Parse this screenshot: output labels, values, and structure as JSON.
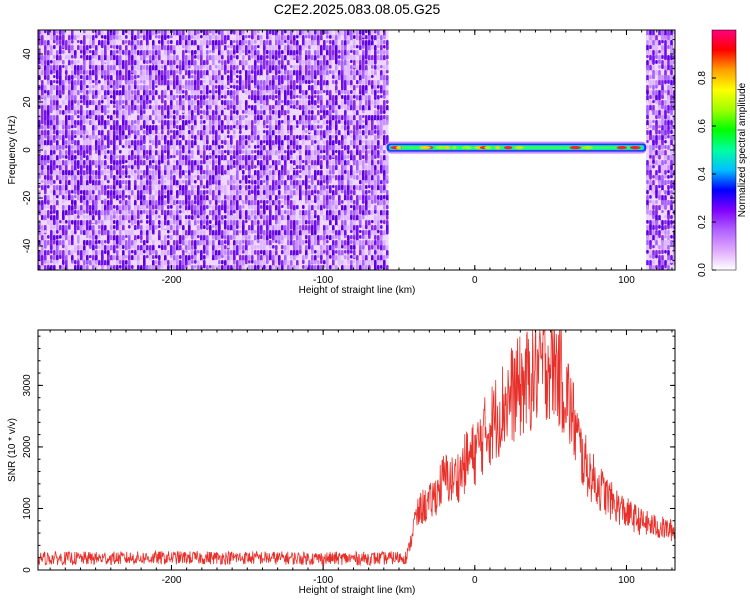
{
  "title": "C2E2.2025.083.08.05.G25",
  "chart_data": [
    {
      "type": "heatmap",
      "xlabel": "Height of straight line (km)",
      "ylabel": "Frequency (Hz)",
      "xlim": [
        -288,
        132
      ],
      "ylim": [
        -50,
        50
      ],
      "xticks": [
        -200,
        -100,
        0,
        100
      ],
      "xtick_labels": [
        "-200",
        "-100",
        "0",
        "100"
      ],
      "yticks": [
        -40,
        -20,
        0,
        20,
        40
      ],
      "ytick_labels": [
        "-40",
        "-20",
        "0",
        "20",
        "40"
      ],
      "noise_regions_x": [
        [
          -288,
          -58
        ],
        [
          113,
          132
        ]
      ],
      "signal_band": {
        "x_range": [
          -58,
          113
        ],
        "frequency_hz": 1
      },
      "colorbar": {
        "label": "Normalized spectral amplitude",
        "range": [
          0,
          1
        ],
        "ticks": [
          0.0,
          0.2,
          0.4,
          0.6,
          0.8
        ],
        "tick_labels": [
          "0.0",
          "0.2",
          "0.4",
          "0.6",
          "0.8"
        ],
        "colors": [
          "#ffffff",
          "#e0a8ff",
          "#b060ff",
          "#8000ff",
          "#0000ff",
          "#00c0ff",
          "#00ffa0",
          "#00ff00",
          "#a0ff00",
          "#ffff00",
          "#ffa000",
          "#ff0000",
          "#ff0080"
        ]
      },
      "grid": false
    },
    {
      "type": "line",
      "xlabel": "Height of straight line (km)",
      "ylabel": "SNR (10 * v/v)",
      "xlim": [
        -288,
        132
      ],
      "ylim": [
        0,
        3900
      ],
      "xticks": [
        -200,
        -100,
        0,
        100
      ],
      "xtick_labels": [
        "-200",
        "-100",
        "0",
        "100"
      ],
      "yticks": [
        0,
        1000,
        2000,
        3000
      ],
      "ytick_labels": [
        "0",
        "1000",
        "2000",
        "3000"
      ],
      "series": [
        {
          "color": "#e8302a",
          "x": [
            -288,
            -250,
            -200,
            -150,
            -100,
            -60,
            -45,
            -42,
            -40,
            -35,
            -30,
            -25,
            -20,
            -15,
            -10,
            -5,
            0,
            5,
            10,
            15,
            20,
            25,
            30,
            35,
            40,
            45,
            50,
            55,
            60,
            65,
            70,
            75,
            80,
            90,
            100,
            110,
            120,
            132
          ],
          "values": [
            200,
            200,
            210,
            210,
            200,
            200,
            220,
            500,
            800,
            1050,
            1100,
            1300,
            1550,
            1500,
            1600,
            1850,
            1950,
            2200,
            2400,
            2600,
            2800,
            2950,
            3050,
            3150,
            3300,
            3450,
            3500,
            3350,
            3000,
            2500,
            1950,
            1650,
            1450,
            1150,
            950,
            800,
            720,
            650
          ]
        }
      ],
      "grid": false
    }
  ]
}
